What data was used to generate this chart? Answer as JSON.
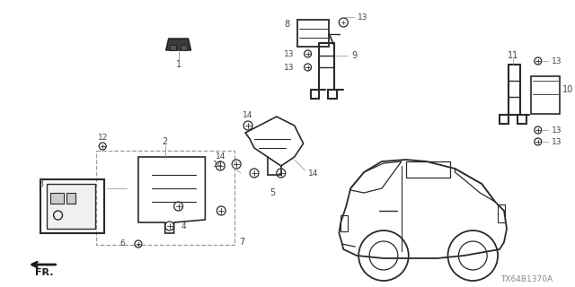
{
  "diagram_code": "TX64B1370A",
  "bg_color": "#ffffff",
  "line_color": "#2a2a2a",
  "label_color": "#444444",
  "gray_color": "#888888"
}
